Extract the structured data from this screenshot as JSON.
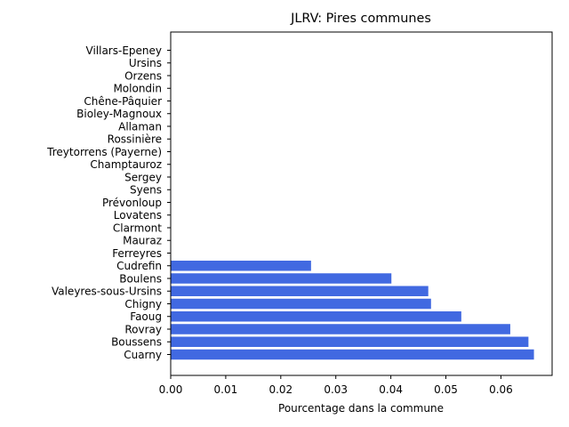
{
  "chart_data": {
    "type": "bar",
    "orientation": "horizontal",
    "title": "JLRV: Pires communes",
    "xlabel": "Pourcentage dans la commune",
    "ylabel": "",
    "categories": [
      "Cuarny",
      "Boussens",
      "Rovray",
      "Faoug",
      "Chigny",
      "Valeyres-sous-Ursins",
      "Boulens",
      "Cudrefin",
      "Ferreyres",
      "Mauraz",
      "Clarmont",
      "Lovatens",
      "Prévonloup",
      "Syens",
      "Sergey",
      "Champtauroz",
      "Treytorrens (Payerne)",
      "Rossinière",
      "Allaman",
      "Bioley-Magnoux",
      "Chêne-Pâquier",
      "Molondin",
      "Orzens",
      "Ursins",
      "Villars-Epeney"
    ],
    "values": [
      0.066,
      0.065,
      0.0617,
      0.0528,
      0.0473,
      0.0468,
      0.0401,
      0.0255,
      0,
      0,
      0,
      0,
      0,
      0,
      0,
      0,
      0,
      0,
      0,
      0,
      0,
      0,
      0,
      0,
      0
    ],
    "xlim": [
      0,
      0.0693
    ],
    "xticks": [
      "0.00",
      "0.01",
      "0.02",
      "0.03",
      "0.04",
      "0.05",
      "0.06"
    ],
    "xtick_values": [
      0,
      0.01,
      0.02,
      0.03,
      0.04,
      0.05,
      0.06
    ],
    "bar_color": "#4169E1",
    "grid": false,
    "legend": "none"
  }
}
